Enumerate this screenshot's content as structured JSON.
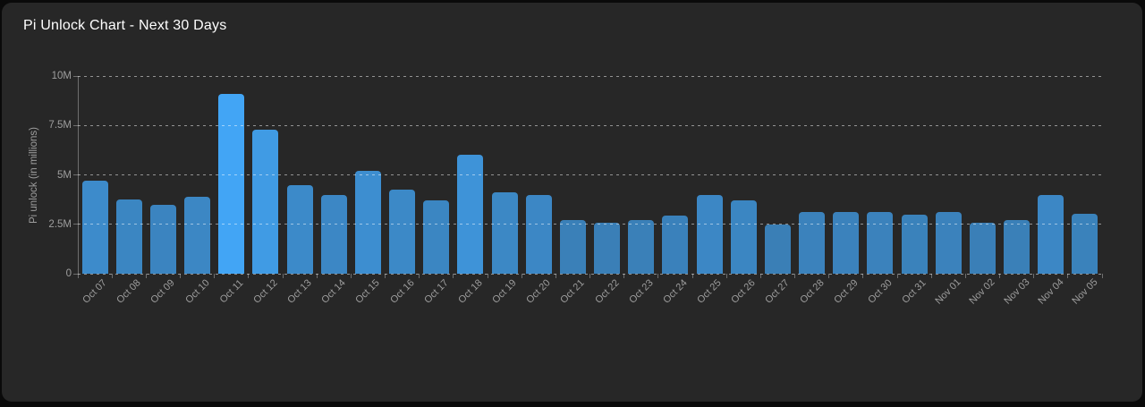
{
  "header": {
    "title": "Pi Unlock Chart - Next 30 Days"
  },
  "chart_data": {
    "type": "bar",
    "title": "Pi Unlock Chart - Next 30 Days",
    "xlabel": "",
    "ylabel": "Pi unlock (in millions)",
    "y_unit": "millions",
    "ylim_millions": [
      0,
      10
    ],
    "y_tick_labels": [
      "10M",
      "7.5M",
      "5M",
      "2.5M",
      "0"
    ],
    "y_tick_values_millions": [
      10,
      7.5,
      5,
      2.5,
      0
    ],
    "grid": "horizontal-dashed",
    "legend_position": "none",
    "x_tick_rotation_deg": -45,
    "categories": [
      "Oct 07",
      "Oct 08",
      "Oct 09",
      "Oct 10",
      "Oct 11",
      "Oct 12",
      "Oct 13",
      "Oct 14",
      "Oct 15",
      "Oct 16",
      "Oct 17",
      "Oct 18",
      "Oct 19",
      "Oct 20",
      "Oct 21",
      "Oct 22",
      "Oct 23",
      "Oct 24",
      "Oct 25",
      "Oct 26",
      "Oct 27",
      "Oct 28",
      "Oct 29",
      "Oct 30",
      "Oct 31",
      "Nov 01",
      "Nov 02",
      "Nov 03",
      "Nov 04",
      "Nov 05"
    ],
    "series": [
      {
        "name": "Pi unlock (in millions)",
        "values_millions": [
          4.7,
          3.75,
          3.5,
          3.9,
          9.1,
          7.3,
          4.5,
          4.0,
          5.2,
          4.25,
          3.7,
          6.0,
          4.1,
          4.0,
          2.7,
          2.6,
          2.7,
          2.95,
          4.0,
          3.7,
          2.5,
          3.1,
          3.1,
          3.1,
          3.0,
          3.1,
          2.6,
          2.7,
          4.0,
          3.05
        ]
      }
    ],
    "color_note": "bar brightness scales with value; tallest bars are brightest blue"
  },
  "colors": {
    "page_background": "#0a0a0a",
    "card_background": "#272727",
    "title_text": "#ffffff",
    "bar_highlight": "#42a5f5",
    "bar_base": "#3a80b8",
    "grid_line": "rgba(255,255,255,0.5)",
    "axis_line": "#6e6e6e",
    "tick_label": "#9e9e9e"
  }
}
